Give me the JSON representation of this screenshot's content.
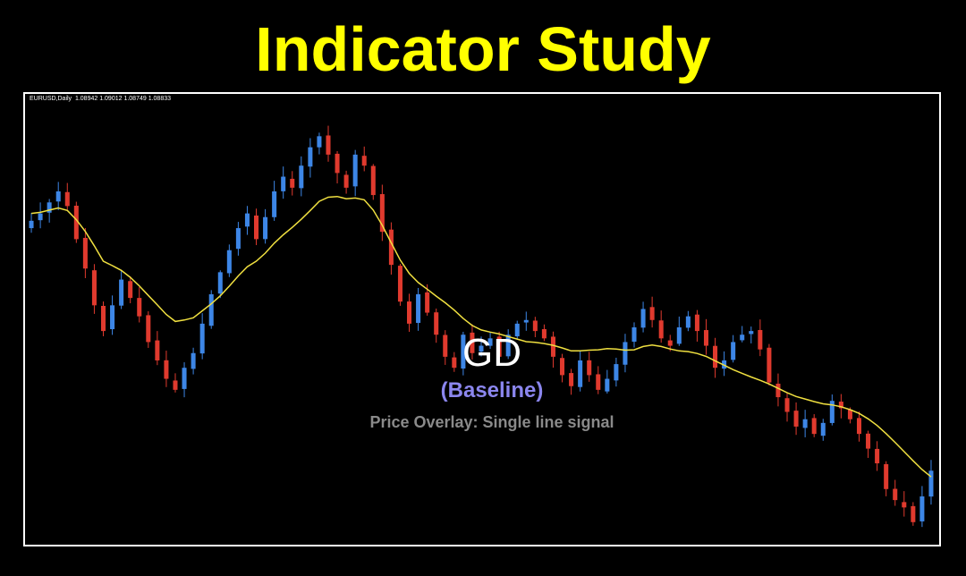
{
  "header": {
    "title": "Indicator Study"
  },
  "chart_info": {
    "symbol_line": "EURUSD,Daily  1.08942 1.09012 1.08749 1.08833"
  },
  "overlay": {
    "name": "GD",
    "subtitle": "(Baseline)",
    "description": "Price Overlay: Single line signal"
  },
  "colors": {
    "background": "#000000",
    "title": "#ffff00",
    "bull_candle": "#3d86e6",
    "bear_candle": "#e03a2e",
    "indicator_line": "#f0e040",
    "frame": "#ffffff"
  },
  "chart_data": {
    "type": "candlestick",
    "ylim": [
      0,
      100
    ],
    "close": [
      78,
      80,
      83,
      86,
      82,
      73,
      65,
      55,
      48,
      55,
      62,
      57,
      52,
      45,
      40,
      35,
      32,
      38,
      42,
      50,
      58,
      64,
      70,
      76,
      80,
      73,
      79,
      86,
      90,
      87,
      93,
      98,
      101,
      96,
      91,
      87,
      96,
      93,
      85,
      75,
      66,
      56,
      50,
      58,
      53,
      47,
      41,
      38,
      47,
      42,
      44,
      46,
      41,
      47,
      50,
      51,
      48,
      46,
      41,
      36,
      33,
      40,
      36,
      32,
      35,
      39,
      45,
      49,
      54,
      51,
      46,
      44,
      49,
      52,
      48,
      44,
      38,
      40,
      45,
      47,
      48,
      43,
      34,
      30,
      26,
      22,
      24,
      20,
      23,
      29,
      27,
      24,
      20,
      16,
      12,
      5,
      2,
      0,
      -4,
      3,
      10
    ],
    "indicator": [
      80,
      80.3,
      80.9,
      81.5,
      80.8,
      78.3,
      75.1,
      71.2,
      67,
      65.8,
      64.5,
      62.6,
      60.3,
      57.7,
      55.1,
      52.5,
      50.6,
      51,
      51.6,
      53.5,
      55.4,
      57.6,
      60.2,
      63,
      65.5,
      67,
      69.2,
      71.9,
      74.2,
      76.2,
      78.4,
      80.8,
      83.3,
      84.4,
      84.6,
      84,
      84.2,
      83.7,
      80.9,
      76.8,
      72,
      67.3,
      63.7,
      61.2,
      59.4,
      57.5,
      55.7,
      53.7,
      51.4,
      49.5,
      48.3,
      47.7,
      47.2,
      46.5,
      45.8,
      45.1,
      44.9,
      44.6,
      44.1,
      43.4,
      42.6,
      42.6,
      42.8,
      42.9,
      43.2,
      43.1,
      42.8,
      42.9,
      43.8,
      44.2,
      43.8,
      43.1,
      42.6,
      42.4,
      41.9,
      41.1,
      39.9,
      38.7,
      37.5,
      36.5,
      35.5,
      34.6,
      33.6,
      32.4,
      31.2,
      30.2,
      29.5,
      28.8,
      28.2,
      27.9,
      27.4,
      26.6,
      25.6,
      24.1,
      22.3,
      20.1,
      17.7,
      15.2,
      12.7,
      10.3,
      8.3
    ]
  }
}
